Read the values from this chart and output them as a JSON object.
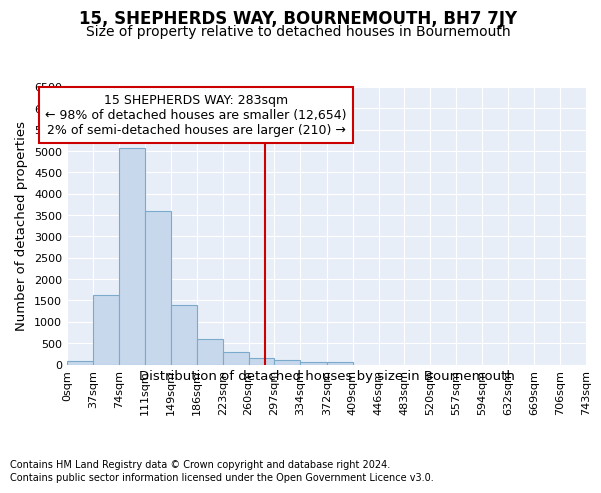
{
  "title": "15, SHEPHERDS WAY, BOURNEMOUTH, BH7 7JY",
  "subtitle": "Size of property relative to detached houses in Bournemouth",
  "xlabel": "Distribution of detached houses by size in Bournemouth",
  "ylabel": "Number of detached properties",
  "footnote1": "Contains HM Land Registry data © Crown copyright and database right 2024.",
  "footnote2": "Contains public sector information licensed under the Open Government Licence v3.0.",
  "annotation_line1": "15 SHEPHERDS WAY: 283sqm",
  "annotation_line2": "← 98% of detached houses are smaller (12,654)",
  "annotation_line3": "2% of semi-detached houses are larger (210) →",
  "property_size": 283,
  "bar_edges": [
    0,
    37,
    74,
    111,
    149,
    186,
    223,
    260,
    297,
    334,
    372,
    409,
    446,
    483,
    520,
    557,
    594,
    632,
    669,
    706,
    743
  ],
  "bar_values": [
    75,
    1625,
    5075,
    3600,
    1400,
    600,
    300,
    150,
    100,
    50,
    50,
    0,
    0,
    0,
    0,
    0,
    0,
    0,
    0,
    0
  ],
  "bar_color": "#c8d8ec",
  "bar_edge_color": "#7aabcc",
  "vline_color": "#cc0000",
  "vline_x": 283,
  "ylim": [
    0,
    6500
  ],
  "yticks": [
    0,
    500,
    1000,
    1500,
    2000,
    2500,
    3000,
    3500,
    4000,
    4500,
    5000,
    5500,
    6000,
    6500
  ],
  "background_color": "#e8eef8",
  "grid_color": "#ffffff",
  "title_fontsize": 12,
  "subtitle_fontsize": 10,
  "axis_label_fontsize": 9.5,
  "tick_fontsize": 8,
  "annotation_fontsize": 9,
  "footnote_fontsize": 7
}
